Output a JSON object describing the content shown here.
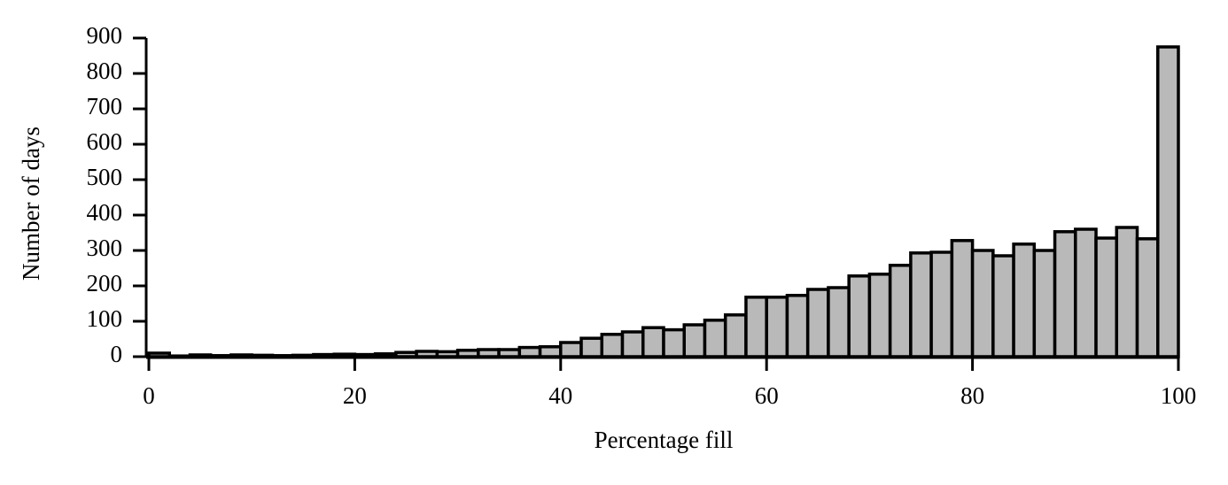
{
  "chart_data": {
    "type": "histogram",
    "xlabel": "Percentage fill",
    "ylabel": "Number of days",
    "bins": [
      0,
      2,
      4,
      6,
      8,
      10,
      12,
      14,
      16,
      18,
      20,
      22,
      24,
      26,
      28,
      30,
      32,
      34,
      36,
      38,
      40,
      42,
      44,
      46,
      48,
      50,
      52,
      54,
      56,
      58,
      60,
      62,
      64,
      66,
      68,
      70,
      72,
      74,
      76,
      78,
      80,
      82,
      84,
      86,
      88,
      90,
      92,
      94,
      96,
      98,
      100
    ],
    "counts": [
      10,
      2,
      5,
      3,
      5,
      4,
      3,
      4,
      6,
      7,
      6,
      8,
      12,
      15,
      14,
      18,
      20,
      20,
      26,
      28,
      40,
      52,
      63,
      70,
      82,
      76,
      90,
      103,
      118,
      168,
      168,
      173,
      190,
      195,
      228,
      233,
      258,
      293,
      295,
      328,
      300,
      285,
      318,
      300,
      353,
      360,
      335,
      365,
      333,
      875
    ],
    "color": "#b9b9b9",
    "edgecolor": "#000000",
    "xlim": [
      0,
      100
    ],
    "xticks": [
      0,
      20,
      40,
      60,
      80,
      100
    ],
    "ylim": [
      0,
      900
    ],
    "yticks": [
      0,
      100,
      200,
      300,
      400,
      500,
      600,
      700,
      800,
      900
    ]
  }
}
